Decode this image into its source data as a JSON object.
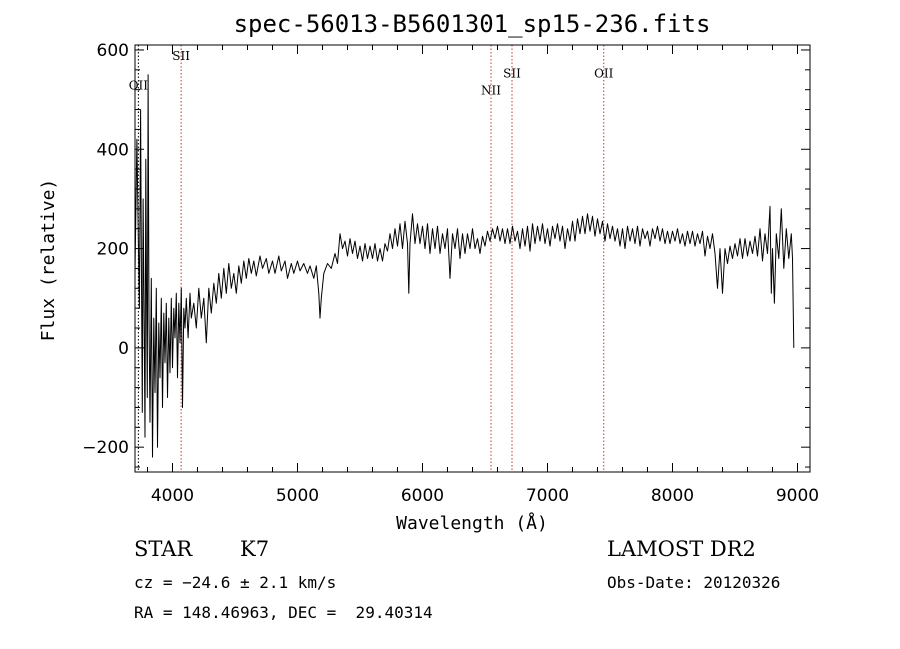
{
  "chart_data": {
    "type": "line",
    "title": "spec-56013-B5601301_sp15-236.fits",
    "xlabel": "Wavelength (Å)",
    "ylabel": "Flux (relative)",
    "xlim": [
      3700,
      9100
    ],
    "ylim": [
      -250,
      610
    ],
    "xticks": [
      4000,
      5000,
      6000,
      7000,
      8000,
      9000
    ],
    "yticks": [
      -200,
      0,
      200,
      400,
      600
    ],
    "series": [
      {
        "values": [
          [
            3700,
            150
          ],
          [
            3715,
            420
          ],
          [
            3725,
            250
          ],
          [
            3735,
            80
          ],
          [
            3745,
            480
          ],
          [
            3750,
            200
          ],
          [
            3758,
            -130
          ],
          [
            3765,
            300
          ],
          [
            3772,
            90
          ],
          [
            3780,
            -180
          ],
          [
            3786,
            380
          ],
          [
            3792,
            120
          ],
          [
            3798,
            -100
          ],
          [
            3805,
            550
          ],
          [
            3812,
            60
          ],
          [
            3820,
            -150
          ],
          [
            3830,
            140
          ],
          [
            3840,
            -220
          ],
          [
            3850,
            60
          ],
          [
            3860,
            -90
          ],
          [
            3870,
            120
          ],
          [
            3880,
            -200
          ],
          [
            3890,
            50
          ],
          [
            3900,
            -60
          ],
          [
            3910,
            100
          ],
          [
            3920,
            -120
          ],
          [
            3930,
            70
          ],
          [
            3940,
            -30
          ],
          [
            3950,
            90
          ],
          [
            3960,
            -100
          ],
          [
            3970,
            60
          ],
          [
            3980,
            -50
          ],
          [
            3990,
            100
          ],
          [
            4000,
            -40
          ],
          [
            4010,
            80
          ],
          [
            4020,
            20
          ],
          [
            4030,
            110
          ],
          [
            4040,
            -60
          ],
          [
            4050,
            90
          ],
          [
            4060,
            10
          ],
          [
            4070,
            120
          ],
          [
            4080,
            -120
          ],
          [
            4090,
            80
          ],
          [
            4100,
            40
          ],
          [
            4110,
            100
          ],
          [
            4125,
            20
          ],
          [
            4140,
            110
          ],
          [
            4150,
            60
          ],
          [
            4170,
            90
          ],
          [
            4190,
            40
          ],
          [
            4210,
            120
          ],
          [
            4230,
            60
          ],
          [
            4250,
            100
          ],
          [
            4270,
            10
          ],
          [
            4290,
            120
          ],
          [
            4310,
            70
          ],
          [
            4330,
            130
          ],
          [
            4350,
            90
          ],
          [
            4370,
            150
          ],
          [
            4390,
            100
          ],
          [
            4410,
            160
          ],
          [
            4430,
            110
          ],
          [
            4450,
            170
          ],
          [
            4470,
            120
          ],
          [
            4490,
            150
          ],
          [
            4510,
            110
          ],
          [
            4530,
            165
          ],
          [
            4550,
            130
          ],
          [
            4570,
            175
          ],
          [
            4590,
            140
          ],
          [
            4610,
            180
          ],
          [
            4630,
            150
          ],
          [
            4650,
            175
          ],
          [
            4670,
            145
          ],
          [
            4700,
            185
          ],
          [
            4720,
            160
          ],
          [
            4750,
            180
          ],
          [
            4770,
            150
          ],
          [
            4800,
            175
          ],
          [
            4820,
            150
          ],
          [
            4850,
            185
          ],
          [
            4870,
            155
          ],
          [
            4900,
            175
          ],
          [
            4920,
            140
          ],
          [
            4950,
            170
          ],
          [
            4970,
            150
          ],
          [
            5000,
            175
          ],
          [
            5020,
            155
          ],
          [
            5050,
            170
          ],
          [
            5080,
            150
          ],
          [
            5100,
            165
          ],
          [
            5130,
            140
          ],
          [
            5150,
            165
          ],
          [
            5170,
            110
          ],
          [
            5180,
            60
          ],
          [
            5190,
            100
          ],
          [
            5210,
            150
          ],
          [
            5240,
            170
          ],
          [
            5270,
            160
          ],
          [
            5300,
            190
          ],
          [
            5320,
            170
          ],
          [
            5340,
            230
          ],
          [
            5360,
            200
          ],
          [
            5380,
            215
          ],
          [
            5400,
            185
          ],
          [
            5420,
            220
          ],
          [
            5440,
            190
          ],
          [
            5460,
            215
          ],
          [
            5480,
            180
          ],
          [
            5500,
            205
          ],
          [
            5520,
            175
          ],
          [
            5540,
            210
          ],
          [
            5560,
            180
          ],
          [
            5580,
            205
          ],
          [
            5600,
            180
          ],
          [
            5620,
            210
          ],
          [
            5640,
            175
          ],
          [
            5660,
            200
          ],
          [
            5680,
            175
          ],
          [
            5700,
            210
          ],
          [
            5720,
            195
          ],
          [
            5740,
            230
          ],
          [
            5760,
            200
          ],
          [
            5780,
            240
          ],
          [
            5800,
            205
          ],
          [
            5820,
            250
          ],
          [
            5840,
            200
          ],
          [
            5860,
            255
          ],
          [
            5880,
            210
          ],
          [
            5890,
            110
          ],
          [
            5900,
            210
          ],
          [
            5920,
            270
          ],
          [
            5940,
            210
          ],
          [
            5960,
            250
          ],
          [
            5980,
            210
          ],
          [
            6000,
            245
          ],
          [
            6020,
            200
          ],
          [
            6040,
            250
          ],
          [
            6060,
            190
          ],
          [
            6080,
            240
          ],
          [
            6100,
            200
          ],
          [
            6120,
            245
          ],
          [
            6140,
            190
          ],
          [
            6160,
            230
          ],
          [
            6180,
            200
          ],
          [
            6200,
            240
          ],
          [
            6220,
            140
          ],
          [
            6240,
            230
          ],
          [
            6260,
            200
          ],
          [
            6280,
            240
          ],
          [
            6300,
            180
          ],
          [
            6320,
            230
          ],
          [
            6340,
            190
          ],
          [
            6360,
            230
          ],
          [
            6380,
            200
          ],
          [
            6400,
            240
          ],
          [
            6420,
            200
          ],
          [
            6440,
            220
          ],
          [
            6460,
            190
          ],
          [
            6480,
            225
          ],
          [
            6500,
            205
          ],
          [
            6520,
            235
          ],
          [
            6540,
            215
          ],
          [
            6560,
            240
          ],
          [
            6580,
            220
          ],
          [
            6600,
            245
          ],
          [
            6620,
            215
          ],
          [
            6640,
            240
          ],
          [
            6660,
            210
          ],
          [
            6680,
            240
          ],
          [
            6700,
            210
          ],
          [
            6720,
            245
          ],
          [
            6740,
            215
          ],
          [
            6760,
            235
          ],
          [
            6780,
            200
          ],
          [
            6800,
            240
          ],
          [
            6820,
            205
          ],
          [
            6840,
            245
          ],
          [
            6860,
            195
          ],
          [
            6880,
            250
          ],
          [
            6900,
            210
          ],
          [
            6920,
            245
          ],
          [
            6940,
            215
          ],
          [
            6960,
            250
          ],
          [
            6980,
            210
          ],
          [
            7000,
            240
          ],
          [
            7020,
            205
          ],
          [
            7040,
            245
          ],
          [
            7060,
            220
          ],
          [
            7080,
            250
          ],
          [
            7100,
            215
          ],
          [
            7120,
            245
          ],
          [
            7140,
            200
          ],
          [
            7160,
            240
          ],
          [
            7180,
            215
          ],
          [
            7200,
            255
          ],
          [
            7220,
            215
          ],
          [
            7240,
            260
          ],
          [
            7260,
            230
          ],
          [
            7280,
            265
          ],
          [
            7300,
            230
          ],
          [
            7320,
            270
          ],
          [
            7340,
            235
          ],
          [
            7360,
            265
          ],
          [
            7380,
            225
          ],
          [
            7400,
            260
          ],
          [
            7420,
            230
          ],
          [
            7440,
            255
          ],
          [
            7460,
            215
          ],
          [
            7480,
            250
          ],
          [
            7500,
            220
          ],
          [
            7520,
            245
          ],
          [
            7540,
            215
          ],
          [
            7560,
            240
          ],
          [
            7580,
            205
          ],
          [
            7600,
            240
          ],
          [
            7620,
            200
          ],
          [
            7640,
            245
          ],
          [
            7660,
            215
          ],
          [
            7680,
            240
          ],
          [
            7700,
            210
          ],
          [
            7720,
            245
          ],
          [
            7740,
            205
          ],
          [
            7760,
            240
          ],
          [
            7780,
            220
          ],
          [
            7800,
            235
          ],
          [
            7820,
            205
          ],
          [
            7840,
            240
          ],
          [
            7860,
            220
          ],
          [
            7880,
            245
          ],
          [
            7900,
            215
          ],
          [
            7920,
            240
          ],
          [
            7940,
            210
          ],
          [
            7960,
            235
          ],
          [
            7980,
            210
          ],
          [
            8000,
            235
          ],
          [
            8020,
            215
          ],
          [
            8040,
            240
          ],
          [
            8060,
            210
          ],
          [
            8080,
            230
          ],
          [
            8100,
            205
          ],
          [
            8120,
            235
          ],
          [
            8140,
            210
          ],
          [
            8160,
            235
          ],
          [
            8180,
            205
          ],
          [
            8200,
            230
          ],
          [
            8220,
            210
          ],
          [
            8240,
            235
          ],
          [
            8260,
            185
          ],
          [
            8280,
            225
          ],
          [
            8300,
            200
          ],
          [
            8320,
            230
          ],
          [
            8340,
            190
          ],
          [
            8360,
            120
          ],
          [
            8380,
            200
          ],
          [
            8400,
            110
          ],
          [
            8420,
            200
          ],
          [
            8440,
            170
          ],
          [
            8460,
            205
          ],
          [
            8480,
            180
          ],
          [
            8500,
            210
          ],
          [
            8520,
            185
          ],
          [
            8540,
            220
          ],
          [
            8560,
            180
          ],
          [
            8580,
            220
          ],
          [
            8600,
            185
          ],
          [
            8620,
            215
          ],
          [
            8640,
            190
          ],
          [
            8660,
            225
          ],
          [
            8680,
            185
          ],
          [
            8700,
            240
          ],
          [
            8720,
            175
          ],
          [
            8740,
            230
          ],
          [
            8760,
            190
          ],
          [
            8780,
            285
          ],
          [
            8790,
            110
          ],
          [
            8800,
            200
          ],
          [
            8815,
            90
          ],
          [
            8830,
            230
          ],
          [
            8850,
            180
          ],
          [
            8870,
            280
          ],
          [
            8890,
            160
          ],
          [
            8910,
            240
          ],
          [
            8930,
            180
          ],
          [
            8950,
            230
          ],
          [
            8960,
            180
          ],
          [
            8970,
            0
          ]
        ]
      }
    ],
    "lines": [
      {
        "label": "OII",
        "x": 3727,
        "style": "dotted-black",
        "label_y": 520
      },
      {
        "label": "SII",
        "x": 4069,
        "style": "dotted-red",
        "label_y": 580
      },
      {
        "label": "NII",
        "x": 6548,
        "style": "dotted-red",
        "label_y": 510
      },
      {
        "label": "SII",
        "x": 6716,
        "style": "dotted-red",
        "label_y": 545
      },
      {
        "label": "OII",
        "x": 7450,
        "style": "dotted-red",
        "label_y": 545
      }
    ],
    "grid": false
  },
  "info": {
    "class": "STAR",
    "subclass": "K7",
    "cz": "cz = −24.6 ± 2.1 km/s",
    "coords": "RA = 148.46963, DEC =  29.40314",
    "survey": "LAMOST DR2",
    "obs_date": "Obs-Date: 20120326"
  },
  "colors": {
    "line_marker": "#c0392b",
    "spectrum": "#000000"
  }
}
